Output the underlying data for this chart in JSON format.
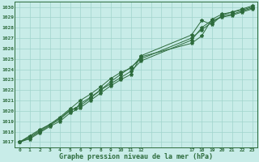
{
  "title": "Graphe pression niveau de la mer (hPa)",
  "bg_color": "#c8ece8",
  "plot_bg_color": "#c8ece8",
  "line_color": "#2d6b3c",
  "grid_color": "#a0d4cc",
  "border_color": "#2d6b3c",
  "xlim": [
    -0.5,
    23.5
  ],
  "ylim": [
    1016.5,
    1030.5
  ],
  "xtick_positions": [
    0,
    1,
    2,
    3,
    4,
    5,
    6,
    7,
    8,
    9,
    10,
    11,
    12,
    17,
    18,
    19,
    20,
    21,
    22,
    23
  ],
  "xtick_labels": [
    "0",
    "1",
    "2",
    "3",
    "4",
    "5",
    "6",
    "7",
    "8",
    "9",
    "10",
    "11",
    "12",
    "17",
    "18",
    "19",
    "20",
    "21",
    "22",
    "23"
  ],
  "ytick_positions": [
    1017,
    1018,
    1019,
    1020,
    1021,
    1022,
    1023,
    1024,
    1025,
    1026,
    1027,
    1028,
    1029,
    1030
  ],
  "ytick_labels": [
    "1017",
    "1018",
    "1019",
    "1020",
    "1021",
    "1022",
    "1023",
    "1024",
    "1025",
    "1026",
    "1027",
    "1028",
    "1029",
    "1030"
  ],
  "xgrid_positions": [
    0,
    1,
    2,
    3,
    4,
    5,
    6,
    7,
    8,
    9,
    10,
    11,
    12,
    13,
    14,
    15,
    16,
    17,
    18,
    19,
    20,
    21,
    22,
    23
  ],
  "series": [
    {
      "x": [
        0,
        1,
        2,
        3,
        4,
        5,
        5.5,
        6,
        7,
        8,
        9,
        10,
        11,
        12,
        17,
        18,
        19,
        20,
        21,
        22,
        23
      ],
      "y": [
        1017.0,
        1017.6,
        1018.2,
        1018.7,
        1019.3,
        1020.1,
        1020.2,
        1020.7,
        1021.3,
        1022.0,
        1022.8,
        1023.5,
        1024.2,
        1025.0,
        1027.0,
        1027.8,
        1028.5,
        1029.1,
        1029.3,
        1029.6,
        1029.9
      ]
    },
    {
      "x": [
        0,
        1,
        2,
        3,
        4,
        5,
        6,
        7,
        8,
        9,
        10,
        11,
        12,
        17,
        18,
        19,
        20,
        21,
        22,
        23
      ],
      "y": [
        1017.0,
        1017.5,
        1018.1,
        1018.7,
        1019.4,
        1020.2,
        1021.0,
        1021.6,
        1022.3,
        1023.1,
        1023.7,
        1024.1,
        1025.2,
        1026.5,
        1027.2,
        1028.8,
        1029.3,
        1029.5,
        1029.7,
        1030.0
      ]
    },
    {
      "x": [
        0,
        1,
        2,
        3,
        4,
        5,
        6,
        7,
        8,
        9,
        10,
        11,
        12,
        17,
        18,
        19,
        20,
        21,
        22,
        23
      ],
      "y": [
        1017.0,
        1017.4,
        1018.0,
        1018.6,
        1019.2,
        1020.0,
        1020.5,
        1021.2,
        1022.0,
        1022.6,
        1023.2,
        1023.8,
        1024.8,
        1026.8,
        1028.0,
        1028.7,
        1029.0,
        1029.2,
        1029.5,
        1029.8
      ]
    },
    {
      "x": [
        0,
        1,
        2,
        3,
        4,
        5,
        6,
        7,
        8,
        9,
        10,
        11,
        12,
        17,
        18,
        19,
        20,
        21,
        22,
        23
      ],
      "y": [
        1017.0,
        1017.3,
        1017.9,
        1018.5,
        1019.0,
        1019.8,
        1020.3,
        1021.0,
        1021.7,
        1022.4,
        1023.0,
        1023.5,
        1025.3,
        1027.3,
        1028.7,
        1028.3,
        1029.2,
        1029.5,
        1029.8,
        1030.1
      ]
    }
  ]
}
